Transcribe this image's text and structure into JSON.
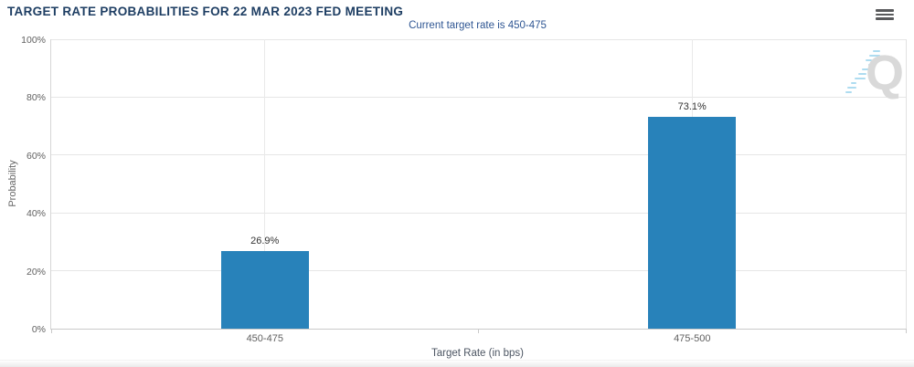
{
  "header": {
    "menu_icon": "hamburger-icon"
  },
  "chart_data": {
    "type": "bar",
    "title": "TARGET RATE PROBABILITIES FOR 22 MAR 2023 FED MEETING",
    "subtitle": "Current target rate is 450-475",
    "categories": [
      "450-475",
      "475-500"
    ],
    "values": [
      26.9,
      73.1
    ],
    "data_labels": [
      "26.9%",
      "73.1%"
    ],
    "xlabel": "Target Rate (in bps)",
    "ylabel": "Probability",
    "ylim": [
      0,
      100
    ],
    "yticks": [
      0,
      20,
      40,
      60,
      80,
      100
    ],
    "ytick_labels": [
      "0%",
      "20%",
      "40%",
      "60%",
      "80%",
      "100%"
    ],
    "legend": "none",
    "grid": true,
    "bar_color": "#2882ba"
  },
  "watermark": {
    "letter": "Q"
  },
  "colors": {
    "title": "#1e3e63",
    "subtitle": "#2f5693",
    "bar": "#2882ba",
    "axis_text": "#606060",
    "gridline": "#e6e6e6"
  }
}
